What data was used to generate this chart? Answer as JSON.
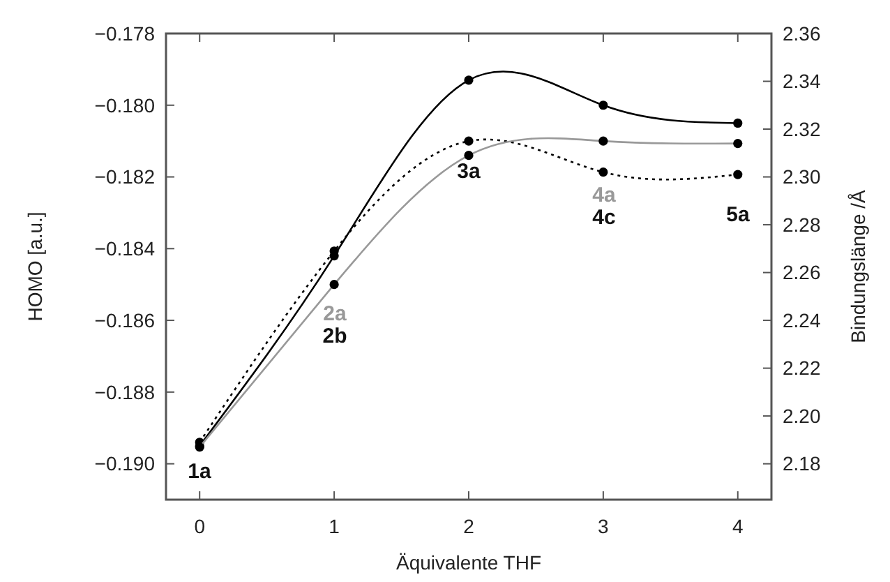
{
  "chart_data": {
    "type": "line",
    "xlabel": "Äquivalente THF",
    "ylabel": "HOMO [a.u.]",
    "y2label": "Bindungslänge /Å",
    "x": [
      0,
      1,
      2,
      3,
      4
    ],
    "xlim": [
      -0.25,
      4.25
    ],
    "xticks": [
      0,
      1,
      2,
      3,
      4
    ],
    "ylim": [
      -0.191,
      -0.178
    ],
    "yticks": [
      {
        "value": -0.19,
        "label": "−0.190"
      },
      {
        "value": -0.188,
        "label": "−0.188"
      },
      {
        "value": -0.186,
        "label": "−0.186"
      },
      {
        "value": -0.184,
        "label": "−0.184"
      },
      {
        "value": -0.182,
        "label": "−0.182"
      },
      {
        "value": -0.18,
        "label": "−0.180"
      },
      {
        "value": -0.178,
        "label": "−0.178"
      }
    ],
    "y2lim": [
      2.165,
      2.36
    ],
    "y2ticks": [
      {
        "value": 2.18,
        "label": "2.18"
      },
      {
        "value": 2.2,
        "label": "2.20"
      },
      {
        "value": 2.22,
        "label": "2.22"
      },
      {
        "value": 2.24,
        "label": "2.24"
      },
      {
        "value": 2.26,
        "label": "2.26"
      },
      {
        "value": 2.28,
        "label": "2.28"
      },
      {
        "value": 2.3,
        "label": "2.30"
      },
      {
        "value": 2.32,
        "label": "2.32"
      },
      {
        "value": 2.34,
        "label": "2.34"
      },
      {
        "value": 2.36,
        "label": "2.36"
      }
    ],
    "grid": false,
    "marker": "circle",
    "series": [
      {
        "color": "#000000",
        "values": [
          -0.1895,
          -0.1842,
          -0.1793,
          -0.18,
          -0.1805
        ],
        "line_style": "solid"
      },
      {
        "color": "#000000",
        "values": [
          2.189,
          2.269,
          2.315,
          2.302,
          2.301
        ],
        "axis": "y2",
        "line_style": "dotted"
      },
      {
        "color": "#999999",
        "values": [
          2.187,
          2.255,
          2.309,
          2.315,
          2.314
        ],
        "axis": "y2",
        "line_style": "solid"
      }
    ],
    "annotations": [
      "1a",
      "2a",
      "2b",
      "3a",
      "4a",
      "4c",
      "5a"
    ]
  }
}
